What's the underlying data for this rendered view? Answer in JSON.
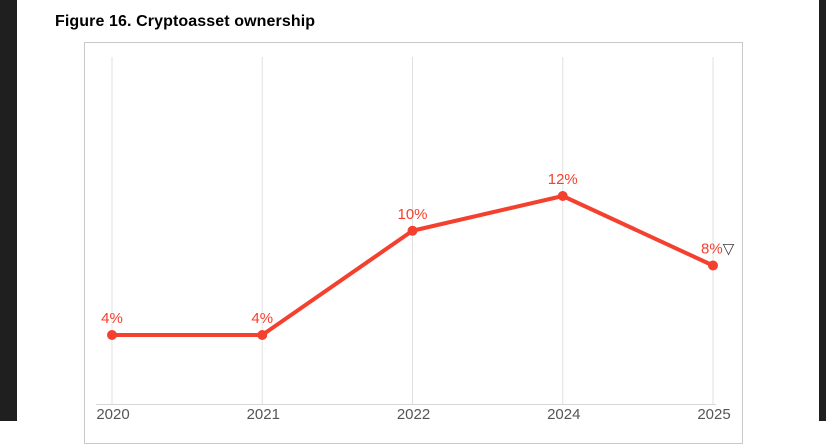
{
  "figure": {
    "title": "Figure 16. Cryptoasset ownership"
  },
  "chart_data": {
    "type": "line",
    "title": "Figure 16. Cryptoasset ownership",
    "categories": [
      "2020",
      "2021",
      "2022",
      "2024",
      "2025"
    ],
    "values": [
      4,
      4,
      10,
      12,
      8
    ],
    "point_labels": [
      "4%",
      "4%",
      "10%",
      "12%",
      "8%"
    ],
    "trend_indicator": {
      "glyph": "▽",
      "meaning": "decrease",
      "applies_to": "2025"
    },
    "ylabel": "",
    "xlabel": "",
    "ylim": [
      0,
      20
    ],
    "grid": "vertical-only",
    "legend": "none",
    "colors": {
      "line": "#f4402e",
      "marker": "#f4402e",
      "data_label": "#f4402e",
      "trend_indicator": "#3c3c3c",
      "gridline": "#e0e0e0",
      "axis_line": "#d6d6d6",
      "tick_label": "#555555"
    }
  }
}
